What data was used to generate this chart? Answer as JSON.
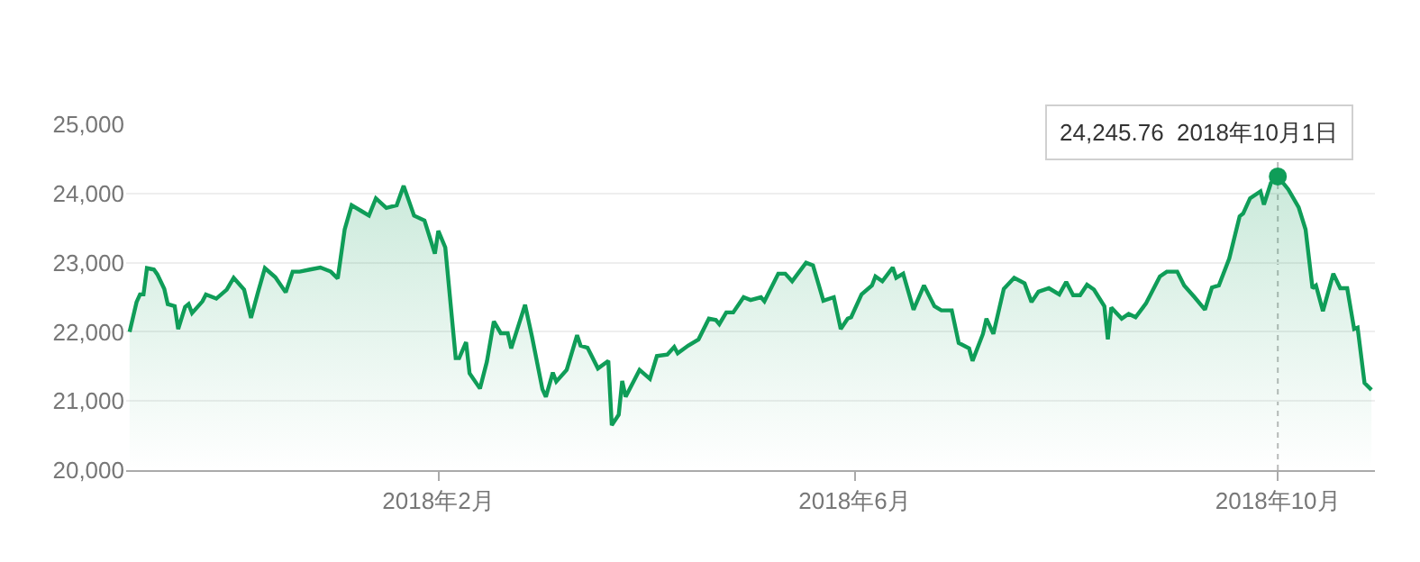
{
  "chart_data": {
    "type": "area",
    "x": [
      "2017-11-04",
      "2017-11-06",
      "2017-11-07",
      "2017-11-08",
      "2017-11-09",
      "2017-11-11",
      "2017-11-12",
      "2017-11-14",
      "2017-11-15",
      "2017-11-17",
      "2017-11-18",
      "2017-11-20",
      "2017-11-21",
      "2017-11-22",
      "2017-11-25",
      "2017-11-26",
      "2017-11-29",
      "2017-12-02",
      "2017-12-04",
      "2017-12-07",
      "2017-12-09",
      "2017-12-11",
      "2017-12-13",
      "2017-12-16",
      "2017-12-19",
      "2017-12-21",
      "2017-12-23",
      "2017-12-26",
      "2017-12-29",
      "2018-01-01",
      "2018-01-03",
      "2018-01-05",
      "2018-01-07",
      "2018-01-10",
      "2018-01-12",
      "2018-01-14",
      "2018-01-17",
      "2018-01-20",
      "2018-01-22",
      "2018-01-25",
      "2018-01-28",
      "2018-01-31",
      "2018-02-01",
      "2018-02-03",
      "2018-02-06",
      "2018-02-07",
      "2018-02-09",
      "2018-02-10",
      "2018-02-13",
      "2018-02-15",
      "2018-02-17",
      "2018-02-19",
      "2018-02-21",
      "2018-02-22",
      "2018-02-26",
      "2018-02-28",
      "2018-03-03",
      "2018-03-04",
      "2018-03-06",
      "2018-03-07",
      "2018-03-10",
      "2018-03-13",
      "2018-03-14",
      "2018-03-16",
      "2018-03-19",
      "2018-03-22",
      "2018-03-23",
      "2018-03-25",
      "2018-03-26",
      "2018-03-27",
      "2018-03-31",
      "2018-04-03",
      "2018-04-05",
      "2018-04-08",
      "2018-04-10",
      "2018-04-11",
      "2018-04-14",
      "2018-04-17",
      "2018-04-20",
      "2018-04-22",
      "2018-04-23",
      "2018-04-25",
      "2018-04-27",
      "2018-04-30",
      "2018-05-02",
      "2018-05-05",
      "2018-05-06",
      "2018-05-10",
      "2018-05-12",
      "2018-05-14",
      "2018-05-18",
      "2018-05-20",
      "2018-05-23",
      "2018-05-26",
      "2018-05-28",
      "2018-05-30",
      "2018-05-31",
      "2018-06-03",
      "2018-06-06",
      "2018-06-07",
      "2018-06-09",
      "2018-06-12",
      "2018-06-13",
      "2018-06-15",
      "2018-06-18",
      "2018-06-21",
      "2018-06-24",
      "2018-06-26",
      "2018-06-29",
      "2018-07-01",
      "2018-07-04",
      "2018-07-05",
      "2018-07-08",
      "2018-07-09",
      "2018-07-11",
      "2018-07-14",
      "2018-07-17",
      "2018-07-20",
      "2018-07-22",
      "2018-07-24",
      "2018-07-27",
      "2018-07-30",
      "2018-08-01",
      "2018-08-03",
      "2018-08-05",
      "2018-08-07",
      "2018-08-09",
      "2018-08-12",
      "2018-08-13",
      "2018-08-14",
      "2018-08-17",
      "2018-08-19",
      "2018-08-21",
      "2018-08-24",
      "2018-08-28",
      "2018-08-30",
      "2018-09-02",
      "2018-09-04",
      "2018-09-07",
      "2018-09-10",
      "2018-09-12",
      "2018-09-14",
      "2018-09-17",
      "2018-09-20",
      "2018-09-21",
      "2018-09-23",
      "2018-09-26",
      "2018-09-27",
      "2018-09-29",
      "2018-10-01",
      "2018-10-04",
      "2018-10-07",
      "2018-10-09",
      "2018-10-11",
      "2018-10-12",
      "2018-10-14",
      "2018-10-17",
      "2018-10-19",
      "2018-10-21",
      "2018-10-23",
      "2018-10-24",
      "2018-10-26",
      "2018-10-28"
    ],
    "series": [
      {
        "color": "#0f9d58",
        "values": [
          22000,
          22430,
          22540,
          22540,
          22920,
          22900,
          22830,
          22620,
          22400,
          22370,
          22040,
          22360,
          22400,
          22270,
          22440,
          22540,
          22480,
          22610,
          22780,
          22610,
          22200,
          22570,
          22920,
          22790,
          22570,
          22870,
          22870,
          22900,
          22930,
          22870,
          22770,
          23480,
          23830,
          23740,
          23680,
          23930,
          23790,
          23830,
          24110,
          23680,
          23610,
          23130,
          23460,
          23220,
          21620,
          21620,
          21850,
          21400,
          21180,
          21570,
          22150,
          21980,
          21980,
          21760,
          22390,
          21930,
          21170,
          21060,
          21410,
          21280,
          21450,
          21950,
          21800,
          21770,
          21470,
          21580,
          20650,
          20800,
          21290,
          21060,
          21450,
          21320,
          21650,
          21670,
          21780,
          21690,
          21800,
          21890,
          22190,
          22170,
          22110,
          22280,
          22280,
          22500,
          22460,
          22500,
          22440,
          22840,
          22840,
          22730,
          23000,
          22960,
          22450,
          22500,
          22040,
          22190,
          22210,
          22540,
          22670,
          22800,
          22730,
          22930,
          22780,
          22840,
          22320,
          22670,
          22370,
          22310,
          22310,
          21840,
          21760,
          21580,
          21970,
          22190,
          21970,
          22620,
          22780,
          22700,
          22430,
          22580,
          22630,
          22540,
          22720,
          22530,
          22530,
          22680,
          22610,
          22370,
          21890,
          22350,
          22190,
          22260,
          22210,
          22410,
          22800,
          22870,
          22870,
          22670,
          22500,
          22320,
          22640,
          22670,
          23060,
          23670,
          23710,
          23930,
          24030,
          23840,
          24150,
          24245.76,
          24060,
          23800,
          23480,
          22630,
          22670,
          22300,
          22840,
          22630,
          22630,
          22040,
          22060,
          21260,
          21160
        ]
      },
      {
        "type": "scatter",
        "marker": "circle",
        "color": "#0f9d58",
        "x": [
          "2018-10-01"
        ],
        "values": [
          24245.76
        ]
      }
    ],
    "xlim": [
      "2017-11-03",
      "2018-10-29"
    ],
    "xticks": [
      {
        "value": "2018-02-01",
        "label": "2018年2月"
      },
      {
        "value": "2018-06-01",
        "label": "2018年6月"
      },
      {
        "value": "2018-10-01",
        "label": "2018年10月"
      }
    ],
    "ylim": [
      20000,
      25000
    ],
    "yticks": [
      {
        "value": 20000,
        "label": "20,000"
      },
      {
        "value": 21000,
        "label": "21,000"
      },
      {
        "value": 22000,
        "label": "22,000"
      },
      {
        "value": 23000,
        "label": "23,000"
      },
      {
        "value": 24000,
        "label": "24,000"
      },
      {
        "value": 25000,
        "label": "25,000"
      }
    ],
    "grid": "y",
    "marker": "none",
    "line_style": "solid",
    "ref_lines": [
      {
        "axis": "x",
        "value": "2018-10-01",
        "color": "#bbbbbb",
        "line_style": "dotted"
      }
    ],
    "annotations": [
      {
        "text": "24,245.76  2018年10月1日",
        "x": "2018-10-01",
        "y": 24245.76
      }
    ]
  }
}
